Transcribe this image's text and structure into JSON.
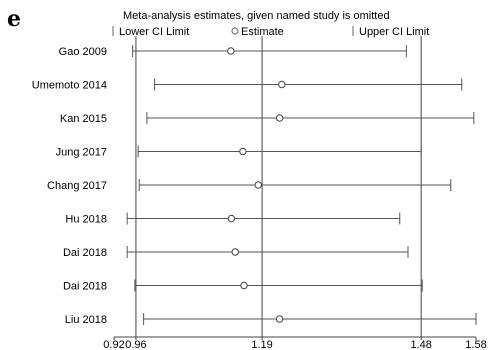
{
  "panel_label": "e",
  "chart_data": {
    "type": "forest",
    "title": "Meta-analysis estimates, given named study is omitted",
    "legend": [
      {
        "marker": "bar",
        "label": "Lower CI Limit"
      },
      {
        "marker": "circle",
        "label": "Estimate"
      },
      {
        "marker": "bar",
        "label": "Upper CI Limit"
      }
    ],
    "xlim": [
      0.92,
      1.58
    ],
    "ticks": [
      0.92,
      0.96,
      1.19,
      1.48,
      1.58
    ],
    "tick_labels": [
      "0.92",
      "0.96",
      "1.19",
      "1.48",
      "1.58"
    ],
    "reference_lines": [
      0.96,
      1.19,
      1.48
    ],
    "studies": [
      {
        "label": "Gao 2009",
        "lower": 0.954,
        "estimate": 1.133,
        "upper": 1.453
      },
      {
        "label": "Umemoto 2014",
        "lower": 0.994,
        "estimate": 1.226,
        "upper": 1.554
      },
      {
        "label": "Kan 2015",
        "lower": 0.98,
        "estimate": 1.222,
        "upper": 1.576
      },
      {
        "label": "Jung 2017",
        "lower": 0.964,
        "estimate": 1.155,
        "upper": 1.48
      },
      {
        "label": "Chang 2017",
        "lower": 0.966,
        "estimate": 1.183,
        "upper": 1.534
      },
      {
        "label": "Hu 2018",
        "lower": 0.944,
        "estimate": 1.134,
        "upper": 1.441
      },
      {
        "label": "Dai 2018",
        "lower": 0.944,
        "estimate": 1.141,
        "upper": 1.456
      },
      {
        "label": "Dai 2018",
        "lower": 0.958,
        "estimate": 1.157,
        "upper": 1.482
      },
      {
        "label": "Liu 2018",
        "lower": 0.974,
        "estimate": 1.222,
        "upper": 1.58
      }
    ]
  }
}
